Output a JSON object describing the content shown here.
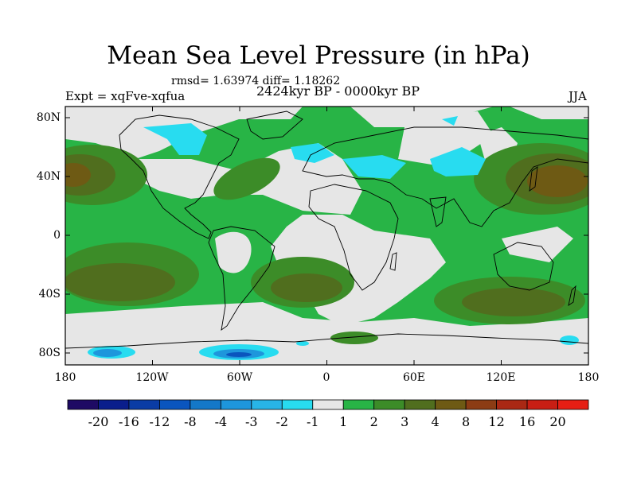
{
  "title": "Mean Sea Level Pressure (in hPa)",
  "stats": "rmsd= 1.63974  diff= 1.18262",
  "period": "2424kyr BP - 0000kyr BP",
  "experiment": "Expt = xqFve-xqfua",
  "season": "JJA",
  "lat_ticks": [
    "80N",
    "40N",
    "0",
    "40S",
    "80S"
  ],
  "lon_ticks": [
    "180",
    "120W",
    "60W",
    "0",
    "60E",
    "120E",
    "180"
  ],
  "colorbar": {
    "labels": [
      "-20",
      "-16",
      "-12",
      "-8",
      "-4",
      "-3",
      "-2",
      "-1",
      "1",
      "2",
      "3",
      "4",
      "8",
      "12",
      "16",
      "20"
    ],
    "colors": [
      "#1e0a64",
      "#0a1e8c",
      "#0a3ca5",
      "#0a55be",
      "#1478c8",
      "#1e96dc",
      "#28b4e6",
      "#28dcf0",
      "#e6e6e6",
      "#28b446",
      "#3c8c28",
      "#506e1e",
      "#6e5a14",
      "#8c3c14",
      "#aa2814",
      "#c81e14",
      "#e61e14"
    ]
  }
}
